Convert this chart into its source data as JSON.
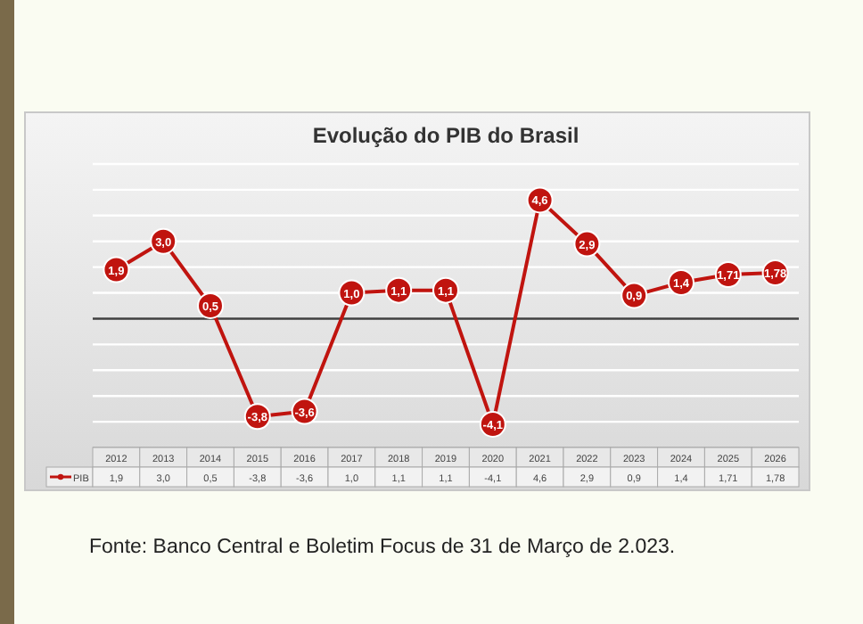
{
  "chart_data": {
    "type": "line",
    "title": "Evolução do PIB do Brasil",
    "categories": [
      "2012",
      "2013",
      "2014",
      "2015",
      "2016",
      "2017",
      "2018",
      "2019",
      "2020",
      "2021",
      "2022",
      "2023",
      "2024",
      "2025",
      "2026"
    ],
    "series": [
      {
        "name": "PIB",
        "color": "#c0140f",
        "values": [
          1.9,
          3.0,
          0.5,
          -3.8,
          -3.6,
          1.0,
          1.1,
          1.1,
          -4.1,
          4.6,
          2.9,
          0.9,
          1.4,
          1.71,
          1.78
        ],
        "value_labels": [
          "1,9",
          "3,0",
          "0,5",
          "-3,8",
          "-3,6",
          "1,0",
          "1,1",
          "1,1",
          "-4,1",
          "4,6",
          "2,9",
          "0,9",
          "1,4",
          "1,71",
          "1,78"
        ]
      }
    ],
    "ylim": [
      -5,
      6
    ],
    "yticks": [
      {
        "value": -4,
        "label": null
      },
      {
        "value": -3,
        "label": null
      },
      {
        "value": -2,
        "label": null
      },
      {
        "value": -1,
        "label": null
      },
      {
        "value": 1,
        "label": null
      },
      {
        "value": 2,
        "label": null
      },
      {
        "value": 3,
        "label": null
      },
      {
        "value": 4,
        "label": null
      },
      {
        "value": 5,
        "label": null
      },
      {
        "value": 6,
        "label": null
      }
    ],
    "grid": "y",
    "tick_labels": "x",
    "marker": "circle",
    "line_style": "solid",
    "legend": "bottom left",
    "ref_lines": [
      {
        "axis": "y",
        "value": 0,
        "color": "#404040"
      }
    ],
    "annotations": [
      "Fonte: Banco Central e Boletim Focus de 31 de Março de 2.023."
    ]
  }
}
